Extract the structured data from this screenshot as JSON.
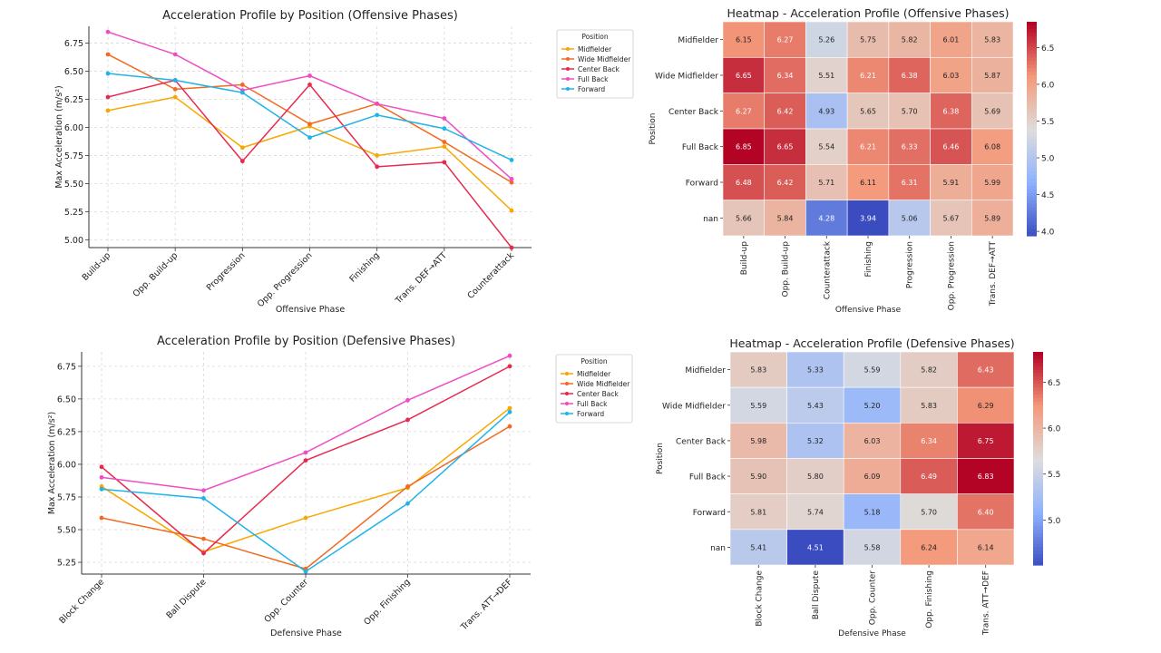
{
  "chart_data": [
    {
      "id": "off_line",
      "type": "line",
      "title": "Acceleration Profile by Position (Offensive Phases)",
      "xlabel": "Offensive Phase",
      "ylabel": "Max Acceleration (m/s²)",
      "categories": [
        "Build-up",
        "Opp. Build-up",
        "Progression",
        "Opp. Progression",
        "Finishing",
        "Trans. DEF→ATT",
        "Counterattack"
      ],
      "ylim": [
        4.93,
        6.9
      ],
      "yticks": [
        "5.00",
        "5.25",
        "5.50",
        "5.75",
        "6.00",
        "6.25",
        "6.50",
        "6.75"
      ],
      "grid": true,
      "legend": {
        "title": "Position",
        "placement": "right"
      },
      "series": [
        {
          "name": "Midfielder",
          "color": "#f7a800",
          "values": [
            6.15,
            6.27,
            5.82,
            6.01,
            5.75,
            5.83,
            5.26
          ]
        },
        {
          "name": "Wide Midfielder",
          "color": "#f26a21",
          "values": [
            6.65,
            6.34,
            6.38,
            6.03,
            6.21,
            5.87,
            5.51
          ]
        },
        {
          "name": "Center Back",
          "color": "#e8294f",
          "values": [
            6.27,
            6.42,
            5.7,
            6.38,
            5.65,
            5.69,
            4.93
          ]
        },
        {
          "name": "Full Back",
          "color": "#ee4dc4",
          "values": [
            6.85,
            6.65,
            6.33,
            6.46,
            6.21,
            6.08,
            5.54
          ]
        },
        {
          "name": "Forward",
          "color": "#1fb4e8",
          "values": [
            6.48,
            6.42,
            6.31,
            5.91,
            6.11,
            5.99,
            5.71
          ]
        }
      ]
    },
    {
      "id": "off_heat",
      "type": "heatmap",
      "title": "Heatmap - Acceleration Profile (Offensive Phases)",
      "xlabel": "Offensive Phase",
      "ylabel": "Position",
      "columns": [
        "Build-up",
        "Opp. Build-up",
        "Counterattack",
        "Finishing",
        "Progression",
        "Opp. Progression",
        "Trans. DEF→ATT"
      ],
      "rows": [
        "Midfielder",
        "Wide Midfielder",
        "Center Back",
        "Full Back",
        "Forward",
        "nan"
      ],
      "values": [
        [
          6.15,
          6.27,
          5.26,
          5.75,
          5.82,
          6.01,
          5.83
        ],
        [
          6.65,
          6.34,
          5.51,
          6.21,
          6.38,
          6.03,
          5.87
        ],
        [
          6.27,
          6.42,
          4.93,
          5.65,
          5.7,
          6.38,
          5.69
        ],
        [
          6.85,
          6.65,
          5.54,
          6.21,
          6.33,
          6.46,
          6.08
        ],
        [
          6.48,
          6.42,
          5.71,
          6.11,
          6.31,
          5.91,
          5.99
        ],
        [
          5.66,
          5.84,
          4.28,
          3.94,
          5.06,
          5.67,
          5.89
        ]
      ],
      "vmin": 3.94,
      "vmax": 6.85,
      "colorbar_ticks": [
        4.0,
        4.5,
        5.0,
        5.5,
        6.0,
        6.5
      ],
      "colormap": "coolwarm"
    },
    {
      "id": "def_line",
      "type": "line",
      "title": "Acceleration Profile by Position (Defensive Phases)",
      "xlabel": "Defensive Phase",
      "ylabel": "Max Acceleration (m/s²)",
      "categories": [
        "Block Change",
        "Ball Dispute",
        "Opp. Counter",
        "Opp. Finishing",
        "Trans. ATT→DEF"
      ],
      "ylim": [
        5.16,
        6.86
      ],
      "yticks": [
        "5.25",
        "5.50",
        "5.75",
        "6.00",
        "6.25",
        "6.50",
        "6.75"
      ],
      "grid": true,
      "legend": {
        "title": "Position",
        "placement": "right"
      },
      "series": [
        {
          "name": "Midfielder",
          "color": "#f7a800",
          "values": [
            5.83,
            5.33,
            5.59,
            5.82,
            6.43
          ]
        },
        {
          "name": "Wide Midfielder",
          "color": "#f26a21",
          "values": [
            5.59,
            5.43,
            5.2,
            5.83,
            6.29
          ]
        },
        {
          "name": "Center Back",
          "color": "#e8294f",
          "values": [
            5.98,
            5.32,
            6.03,
            6.34,
            6.75
          ]
        },
        {
          "name": "Full Back",
          "color": "#ee4dc4",
          "values": [
            5.9,
            5.8,
            6.09,
            6.49,
            6.83
          ]
        },
        {
          "name": "Forward",
          "color": "#1fb4e8",
          "values": [
            5.81,
            5.74,
            5.18,
            5.7,
            6.4
          ]
        }
      ]
    },
    {
      "id": "def_heat",
      "type": "heatmap",
      "title": "Heatmap - Acceleration Profile (Defensive Phases)",
      "xlabel": "Defensive Phase",
      "ylabel": "Position",
      "columns": [
        "Block Change",
        "Ball Dispute",
        "Opp. Counter",
        "Opp. Finishing",
        "Trans. ATT→DEF"
      ],
      "rows": [
        "Midfielder",
        "Wide Midfielder",
        "Center Back",
        "Full Back",
        "Forward",
        "nan"
      ],
      "values": [
        [
          5.83,
          5.33,
          5.59,
          5.82,
          6.43
        ],
        [
          5.59,
          5.43,
          5.2,
          5.83,
          6.29
        ],
        [
          5.98,
          5.32,
          6.03,
          6.34,
          6.75
        ],
        [
          5.9,
          5.8,
          6.09,
          6.49,
          6.83
        ],
        [
          5.81,
          5.74,
          5.18,
          5.7,
          6.4
        ],
        [
          5.41,
          4.51,
          5.58,
          6.24,
          6.14
        ]
      ],
      "vmin": 4.51,
      "vmax": 6.83,
      "colorbar_ticks": [
        5.0,
        5.5,
        6.0,
        6.5
      ],
      "colormap": "coolwarm"
    }
  ]
}
